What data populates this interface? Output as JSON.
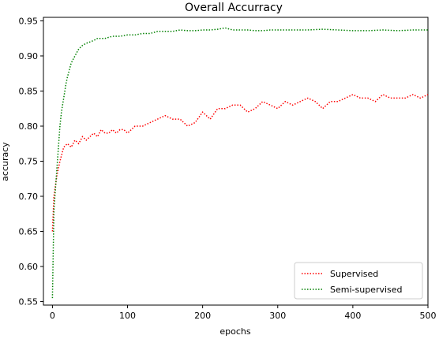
{
  "chart_data": {
    "type": "line",
    "title": "Overall Accurracy",
    "xlabel": "epochs",
    "ylabel": "accuracy",
    "xlim": [
      -12,
      500
    ],
    "ylim": [
      0.545,
      0.955
    ],
    "xticks": [
      "0",
      "100",
      "200",
      "300",
      "400",
      "500"
    ],
    "yticks": [
      "0.55",
      "0.60",
      "0.65",
      "0.70",
      "0.75",
      "0.80",
      "0.85",
      "0.90",
      "0.95"
    ],
    "grid": false,
    "legend_position": "bottom-right",
    "series": [
      {
        "name": "Supervised",
        "color": "#ff0000",
        "style": "dotted",
        "x": [
          0,
          2,
          4,
          6,
          8,
          10,
          15,
          20,
          25,
          30,
          35,
          40,
          45,
          50,
          55,
          60,
          65,
          70,
          75,
          80,
          85,
          90,
          95,
          100,
          110,
          120,
          130,
          140,
          150,
          160,
          170,
          180,
          190,
          200,
          210,
          220,
          230,
          240,
          250,
          260,
          270,
          280,
          290,
          300,
          310,
          320,
          330,
          340,
          350,
          360,
          370,
          380,
          390,
          400,
          410,
          420,
          430,
          440,
          450,
          460,
          470,
          480,
          490,
          500
        ],
        "y": [
          0.65,
          0.7,
          0.715,
          0.73,
          0.74,
          0.75,
          0.77,
          0.775,
          0.77,
          0.78,
          0.775,
          0.785,
          0.78,
          0.785,
          0.79,
          0.785,
          0.795,
          0.79,
          0.79,
          0.795,
          0.79,
          0.795,
          0.795,
          0.79,
          0.8,
          0.8,
          0.805,
          0.81,
          0.815,
          0.81,
          0.81,
          0.8,
          0.805,
          0.82,
          0.81,
          0.825,
          0.825,
          0.83,
          0.83,
          0.82,
          0.825,
          0.835,
          0.83,
          0.825,
          0.835,
          0.83,
          0.835,
          0.84,
          0.835,
          0.825,
          0.835,
          0.835,
          0.84,
          0.845,
          0.84,
          0.84,
          0.835,
          0.845,
          0.84,
          0.84,
          0.84,
          0.845,
          0.84,
          0.845
        ]
      },
      {
        "name": "Semi-supervised",
        "color": "#008000",
        "style": "dotted",
        "x": [
          0,
          2,
          4,
          6,
          8,
          10,
          12,
          15,
          18,
          20,
          25,
          30,
          35,
          40,
          45,
          50,
          55,
          60,
          70,
          80,
          90,
          100,
          110,
          120,
          130,
          140,
          150,
          160,
          170,
          180,
          190,
          200,
          210,
          220,
          230,
          240,
          250,
          260,
          270,
          280,
          290,
          300,
          320,
          340,
          360,
          380,
          400,
          420,
          440,
          460,
          480,
          500
        ],
        "y": [
          0.555,
          0.68,
          0.71,
          0.74,
          0.77,
          0.8,
          0.82,
          0.84,
          0.86,
          0.87,
          0.89,
          0.9,
          0.91,
          0.915,
          0.918,
          0.92,
          0.922,
          0.925,
          0.925,
          0.928,
          0.928,
          0.93,
          0.93,
          0.932,
          0.932,
          0.935,
          0.935,
          0.935,
          0.937,
          0.936,
          0.936,
          0.937,
          0.937,
          0.938,
          0.94,
          0.937,
          0.937,
          0.937,
          0.936,
          0.936,
          0.937,
          0.937,
          0.937,
          0.937,
          0.938,
          0.937,
          0.936,
          0.936,
          0.937,
          0.936,
          0.937,
          0.937
        ]
      }
    ]
  }
}
